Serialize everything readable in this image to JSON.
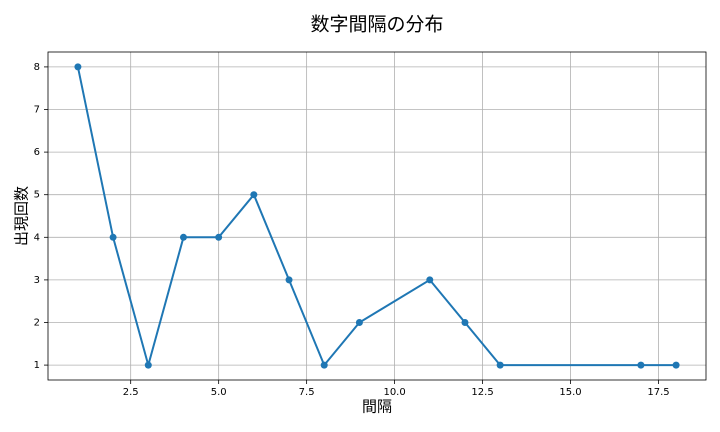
{
  "chart_data": {
    "type": "line",
    "title": "数字間隔の分布",
    "x_label": "間隔",
    "y_label": "出現回数",
    "x": [
      1,
      2,
      3,
      4,
      5,
      6,
      7,
      8,
      9,
      11,
      12,
      13,
      17,
      18
    ],
    "series": [
      {
        "color": "#1f77b4",
        "values": [
          8,
          4,
          1,
          4,
          4,
          5,
          3,
          1,
          2,
          3,
          2,
          1,
          1,
          1
        ]
      }
    ],
    "xlim": [
      0.15,
      18.85
    ],
    "xticks": [
      2.5,
      {
        "value": 5,
        "label": "5.0"
      },
      7.5,
      {
        "value": 10,
        "label": "10.0"
      },
      12.5,
      {
        "value": 15,
        "label": "15.0"
      },
      17.5
    ],
    "ylim": [
      0.65,
      8.35
    ],
    "yticks": [
      1,
      2,
      3,
      4,
      5,
      6,
      7,
      8
    ],
    "grid": true,
    "markers": true
  }
}
